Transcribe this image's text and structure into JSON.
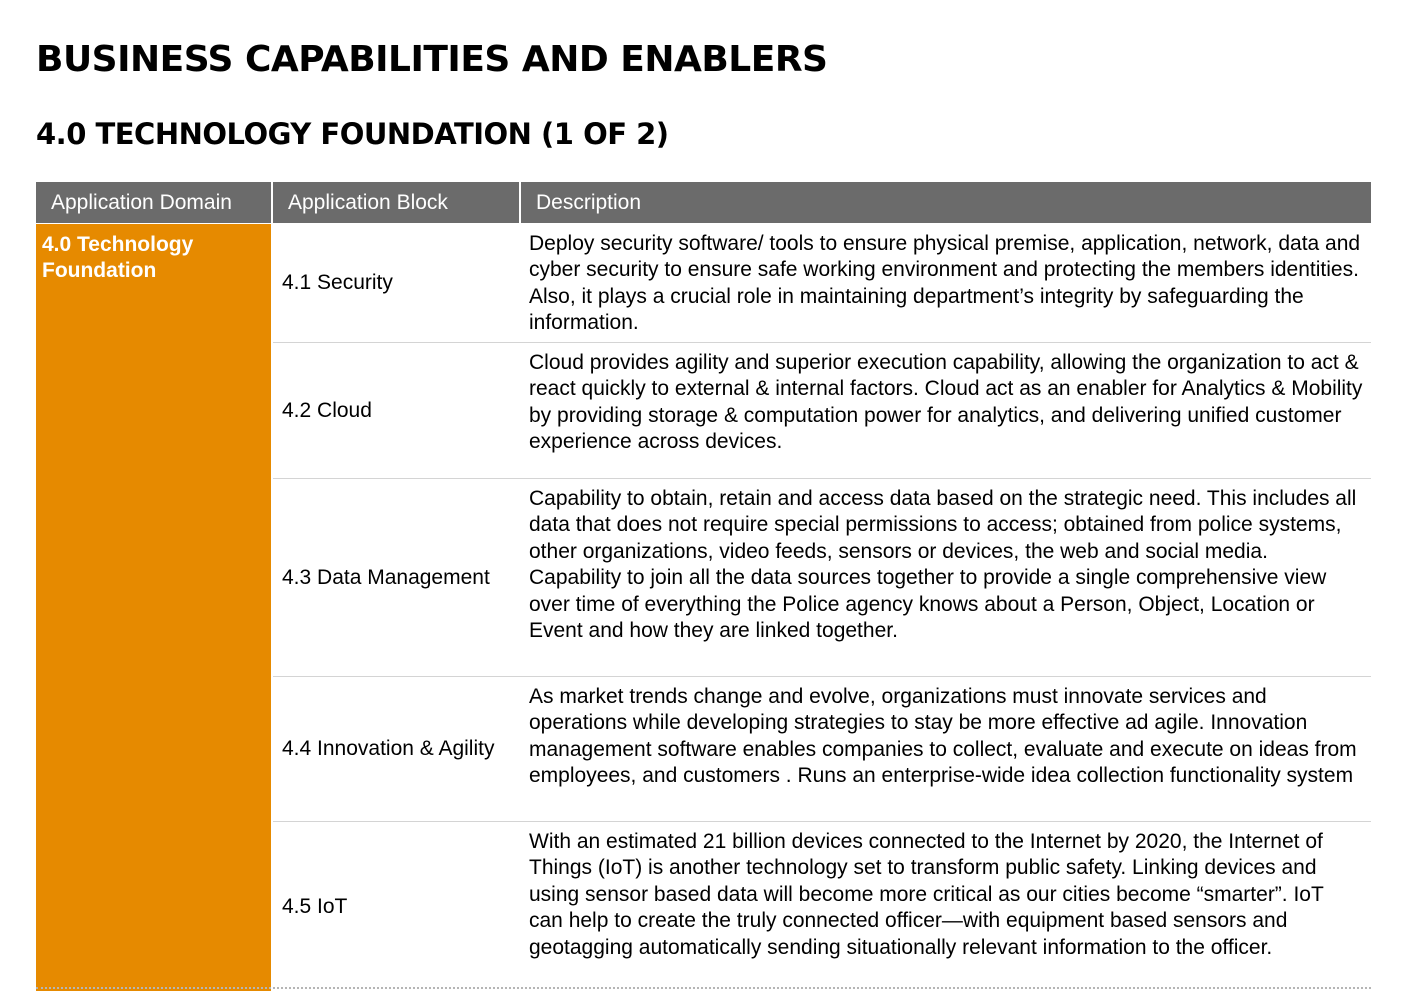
{
  "page": {
    "title": "BUSINESS CAPABILITIES AND ENABLERS",
    "subtitle": "4.0 TECHNOLOGY FOUNDATION (1 OF 2)"
  },
  "table": {
    "headers": [
      "Application Domain",
      "Application Block",
      "Description"
    ],
    "domain": "4.0 Technology Foundation",
    "rows": [
      {
        "block": "4.1 Security",
        "description": "Deploy security software/ tools to ensure physical premise, application, network, data and cyber security to ensure safe working environment and protecting the members identities. Also, it plays a crucial role in maintaining department’s integrity by safeguarding the information."
      },
      {
        "block": "4.2 Cloud",
        "description": "Cloud provides  agility and superior execution capability, allowing the organization to act & react quickly to external & internal factors. Cloud  act as an enabler for Analytics & Mobility by providing storage & computation power for analytics, and delivering unified customer experience across devices."
      },
      {
        "block": "4.3 Data Management",
        "description": "Capability to obtain, retain and access data based on the strategic need. This includes all data that does not require special permissions to access; obtained from police systems, other organizations, video feeds, sensors or devices, the web and social media. Capability to join all the data sources together to provide a single comprehensive view over time of everything the Police agency knows about a Person, Object, Location or Event and how they are linked together."
      },
      {
        "block": "4.4 Innovation & Agility",
        "description": "As market trends change and evolve, organizations must innovate services and operations while developing strategies to stay be more effective ad agile. Innovation management software enables companies to collect, evaluate and execute on ideas from employees, and customers . Runs an enterprise-wide idea collection functionality system"
      },
      {
        "block": "4.5 IoT",
        "description": "With an estimated 21 billion devices connected to the Internet by 2020, the Internet of Things (IoT) is another technology set to transform public safety. Linking devices and using sensor based data will become more critical as our cities become “smarter”. IoT can help to create the truly connected officer—with equipment based sensors and geotagging automatically sending situationally relevant information to the officer."
      }
    ]
  },
  "colors": {
    "header_bg": "#6b6b6b",
    "domain_bg": "#e68a00",
    "row_divider": "#d4d4d4"
  }
}
